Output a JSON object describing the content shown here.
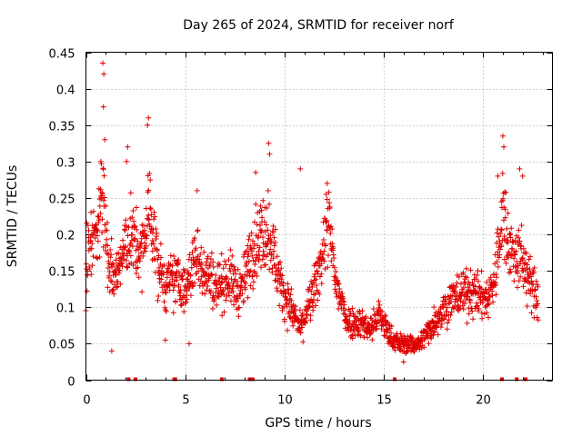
{
  "chart_data": {
    "type": "scatter",
    "title": "Day 265 of 2024, SRMTID for receiver norf",
    "xlabel": "GPS time / hours",
    "ylabel": "SRMTID / TECUs",
    "xlim": [
      0,
      23.5
    ],
    "ylim": [
      0,
      0.45
    ],
    "xticks": [
      0,
      5,
      10,
      15,
      20
    ],
    "yticks": [
      0,
      0.05,
      0.1,
      0.15,
      0.2,
      0.25,
      0.3,
      0.35,
      0.4,
      0.45
    ],
    "xtick_labels": [
      "0",
      "5",
      "10",
      "15",
      "20"
    ],
    "ytick_labels": [
      "0",
      "0.05",
      "0.1",
      "0.15",
      "0.2",
      "0.25",
      "0.3",
      "0.35",
      "0.4",
      "0.45"
    ],
    "grid": true,
    "marker": "+",
    "color": "#e00000",
    "series": [
      {
        "name": "SRMTID",
        "profile": [
          [
            0.0,
            0.17
          ],
          [
            0.5,
            0.2
          ],
          [
            0.9,
            0.25
          ],
          [
            1.2,
            0.14
          ],
          [
            1.6,
            0.15
          ],
          [
            2.2,
            0.2
          ],
          [
            2.8,
            0.17
          ],
          [
            3.2,
            0.24
          ],
          [
            3.6,
            0.16
          ],
          [
            4.0,
            0.13
          ],
          [
            4.6,
            0.14
          ],
          [
            5.0,
            0.12
          ],
          [
            5.5,
            0.17
          ],
          [
            6.0,
            0.15
          ],
          [
            6.6,
            0.13
          ],
          [
            7.2,
            0.14
          ],
          [
            7.8,
            0.12
          ],
          [
            8.5,
            0.19
          ],
          [
            9.2,
            0.21
          ],
          [
            9.8,
            0.13
          ],
          [
            10.3,
            0.1
          ],
          [
            10.8,
            0.07
          ],
          [
            11.2,
            0.1
          ],
          [
            11.6,
            0.13
          ],
          [
            12.2,
            0.22
          ],
          [
            12.6,
            0.13
          ],
          [
            13.2,
            0.08
          ],
          [
            13.8,
            0.08
          ],
          [
            14.3,
            0.07
          ],
          [
            14.8,
            0.09
          ],
          [
            15.3,
            0.06
          ],
          [
            15.8,
            0.05
          ],
          [
            16.3,
            0.05
          ],
          [
            16.8,
            0.05
          ],
          [
            17.3,
            0.07
          ],
          [
            17.8,
            0.09
          ],
          [
            18.4,
            0.11
          ],
          [
            19.0,
            0.12
          ],
          [
            19.6,
            0.12
          ],
          [
            20.2,
            0.11
          ],
          [
            20.6,
            0.14
          ],
          [
            21.0,
            0.23
          ],
          [
            21.5,
            0.17
          ],
          [
            21.9,
            0.17
          ],
          [
            22.4,
            0.13
          ],
          [
            22.8,
            0.11
          ]
        ],
        "peaks": [
          [
            0.85,
            0.435
          ],
          [
            0.9,
            0.42
          ],
          [
            0.88,
            0.375
          ],
          [
            0.75,
            0.3
          ],
          [
            0.95,
            0.33
          ],
          [
            3.15,
            0.36
          ],
          [
            3.1,
            0.35
          ],
          [
            2.05,
            0.3
          ],
          [
            2.1,
            0.32
          ],
          [
            9.2,
            0.325
          ],
          [
            9.25,
            0.31
          ],
          [
            8.55,
            0.285
          ],
          [
            12.15,
            0.27
          ],
          [
            10.8,
            0.29
          ],
          [
            5.6,
            0.26
          ],
          [
            21.0,
            0.335
          ],
          [
            21.05,
            0.32
          ],
          [
            20.75,
            0.28
          ],
          [
            21.85,
            0.29
          ],
          [
            22.0,
            0.28
          ],
          [
            1.3,
            0.04
          ],
          [
            4.0,
            0.055
          ],
          [
            5.2,
            0.05
          ],
          [
            16.0,
            0.025
          ]
        ],
        "zero_points": [
          2.15,
          2.5,
          4.45,
          4.5,
          6.85,
          8.25,
          8.4,
          15.55,
          20.95,
          21.7,
          22.15
        ]
      }
    ]
  }
}
